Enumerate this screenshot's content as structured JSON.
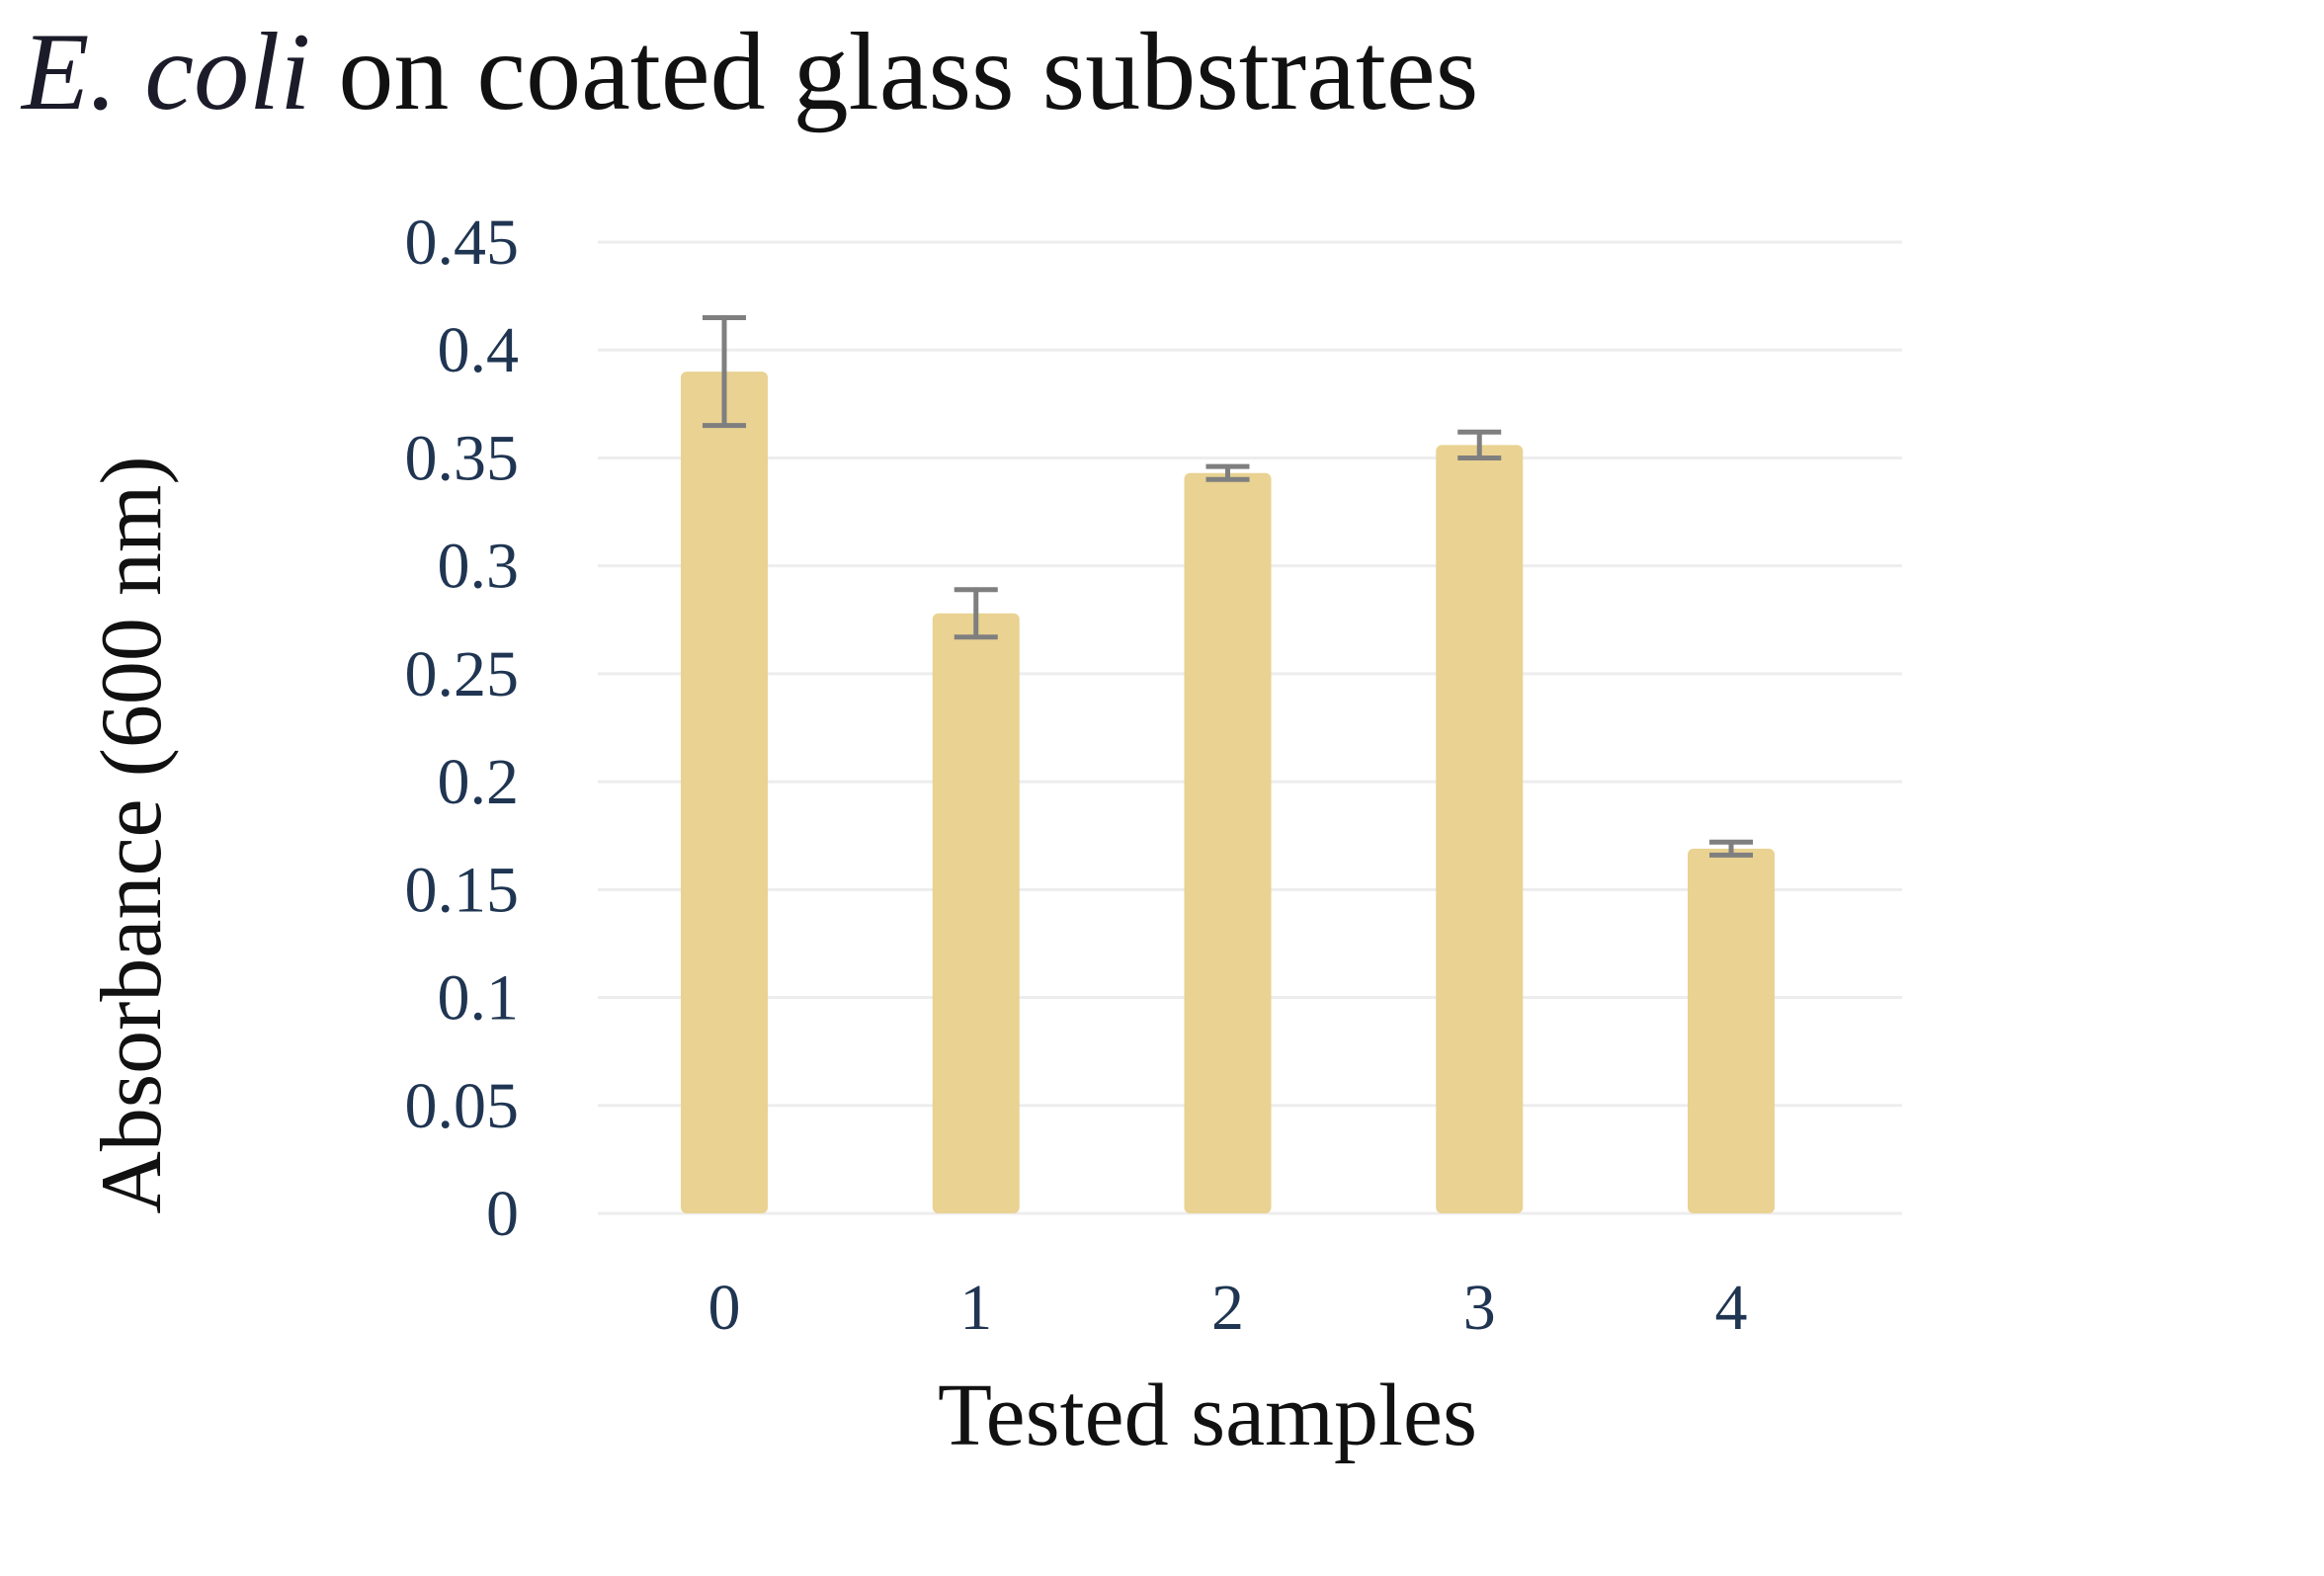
{
  "chart_data": {
    "type": "bar",
    "title": {
      "italic_part": "E. coli",
      "rest": " on coated glass substrates"
    },
    "xlabel": "Tested samples",
    "ylabel": "Absorbance (600 nm)",
    "categories": [
      "0",
      "1",
      "2",
      "3",
      "4"
    ],
    "values": [
      0.39,
      0.278,
      0.343,
      0.356,
      0.169
    ],
    "errors": [
      0.025,
      0.011,
      0.003,
      0.006,
      0.003
    ],
    "yticks": [
      "0",
      "0.05",
      "0.1",
      "0.15",
      "0.2",
      "0.25",
      "0.3",
      "0.35",
      "0.4",
      "0.45"
    ],
    "ylim": [
      0,
      0.45
    ],
    "grid": true,
    "legend": "none",
    "colors": {
      "bar": "#e9d292",
      "error_bar": "#7f7f7f",
      "grid": "#ededed",
      "tick_label": "#1f3552"
    }
  }
}
